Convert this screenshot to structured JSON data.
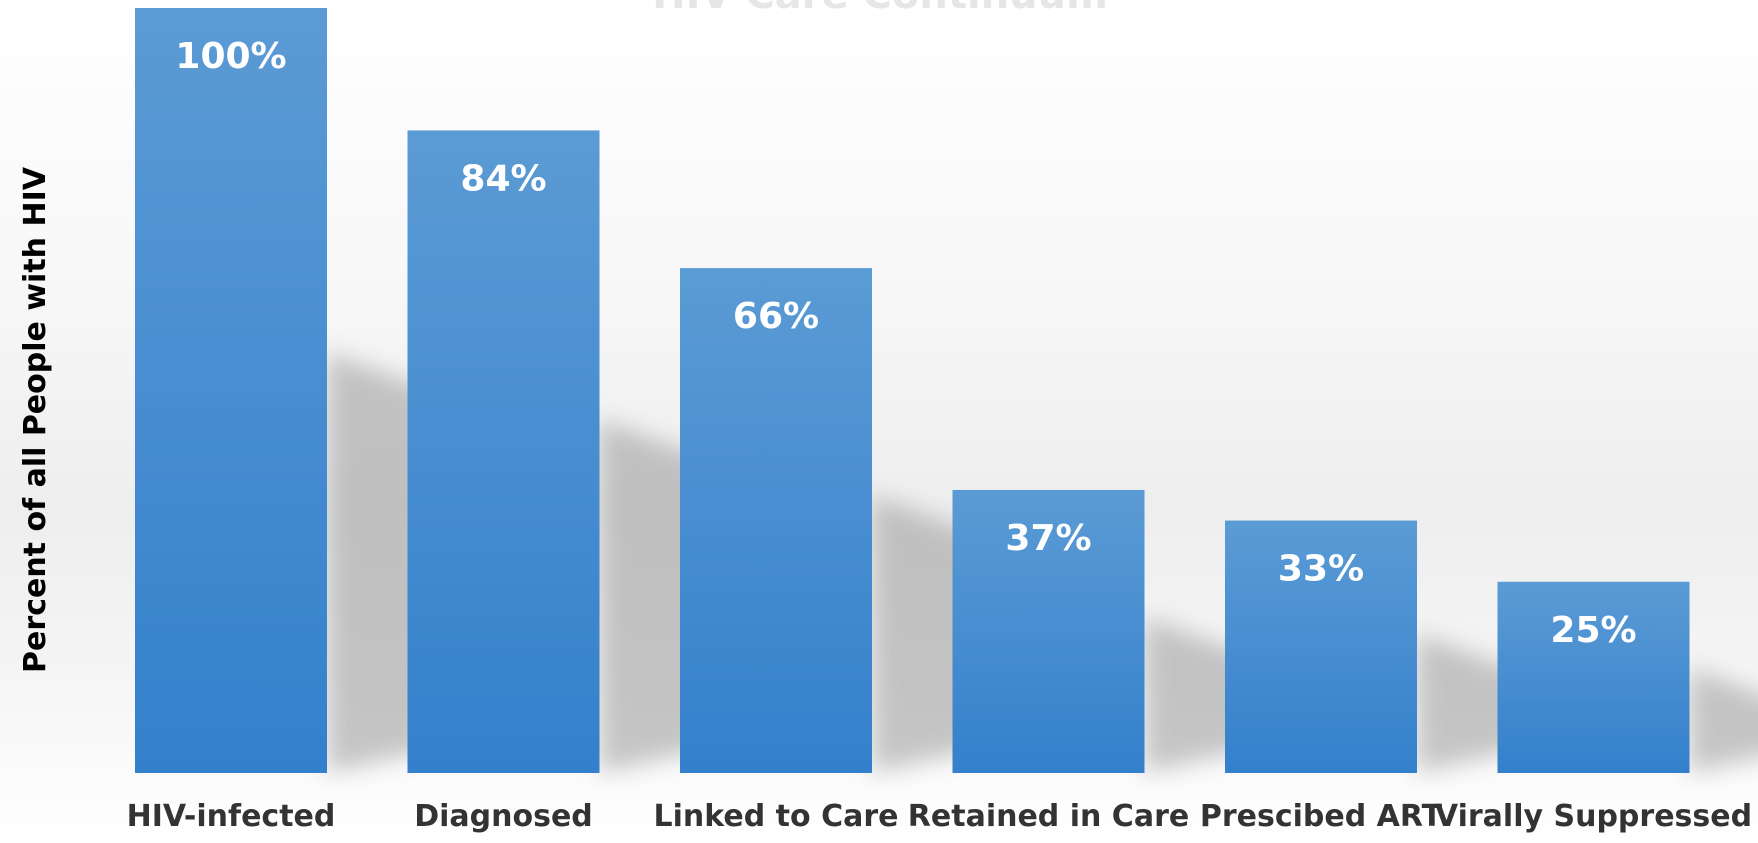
{
  "chart_data": {
    "type": "bar",
    "title": "HIV Care Continuum",
    "categories": [
      "HIV-infected",
      "Diagnosed",
      "Linked to Care",
      "Retained in Care",
      "Prescibed ART",
      "Virally Suppressed"
    ],
    "series": [
      {
        "values": [
          100,
          84,
          66,
          37,
          33,
          25
        ]
      }
    ],
    "value_labels": [
      "100%",
      "84%",
      "66%",
      "37%",
      "33%",
      "25%"
    ],
    "xlabel": "",
    "ylabel": "Percent of all People with HIV",
    "ylim": [
      0,
      100
    ],
    "grid": false,
    "legend": "none",
    "bar_color": "#3b87d0"
  }
}
